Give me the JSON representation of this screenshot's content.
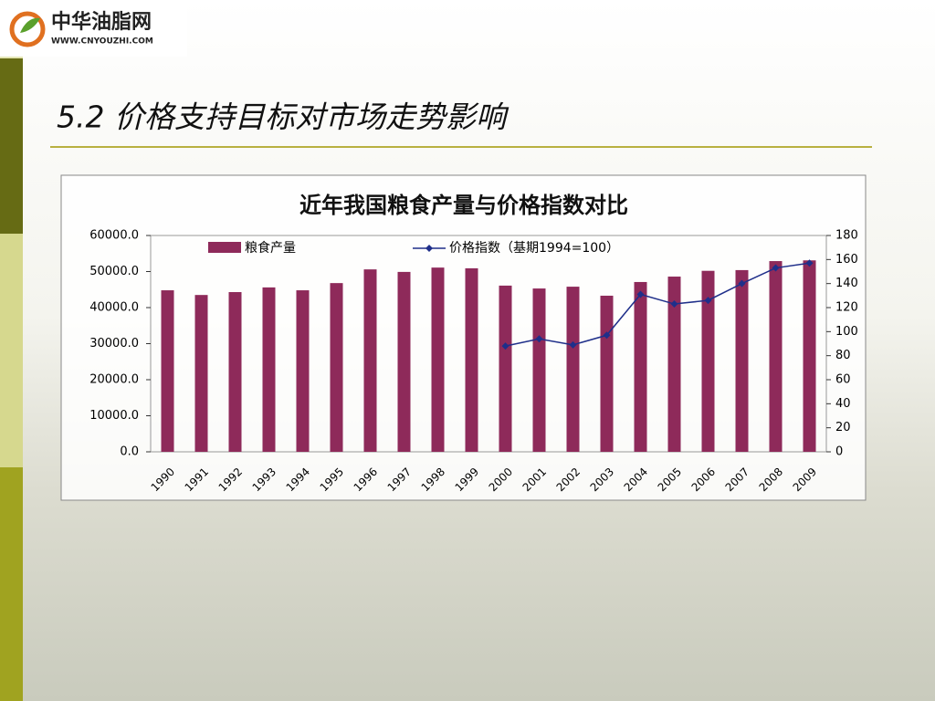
{
  "logo": {
    "name": "中华油脂网",
    "url": "WWW.CNYOUZHI.COM"
  },
  "slide_title": "5.2 价格支持目标对市场走势影响",
  "chart_data": {
    "type": "bar",
    "title": "近年我国粮食产量与价格指数对比",
    "categories": [
      "1990",
      "1991",
      "1992",
      "1993",
      "1994",
      "1995",
      "1996",
      "1997",
      "1998",
      "1999",
      "2000",
      "2001",
      "2002",
      "2003",
      "2004",
      "2005",
      "2006",
      "2007",
      "2008",
      "2009"
    ],
    "series": [
      {
        "name": "粮食产量",
        "type": "bar",
        "color": "#8e2a5a",
        "values": [
          44800,
          43500,
          44300,
          45600,
          44800,
          46800,
          50600,
          49900,
          51100,
          50900,
          46100,
          45300,
          45800,
          43300,
          47100,
          48600,
          50200,
          50400,
          52900,
          53100
        ]
      },
      {
        "name": "价格指数（基期1994=100）",
        "type": "line",
        "axis": "y2",
        "color": "#1f2f8a",
        "values": [
          null,
          null,
          null,
          null,
          null,
          null,
          null,
          null,
          null,
          null,
          88,
          94,
          89,
          97,
          131,
          123,
          126,
          140,
          153,
          157
        ]
      }
    ],
    "ylim": [
      0,
      60000
    ],
    "yticks": [
      {
        "value": 0,
        "label": "0.0"
      },
      {
        "value": 10000,
        "label": "10000.0"
      },
      {
        "value": 20000,
        "label": "20000.0"
      },
      {
        "value": 30000,
        "label": "30000.0"
      },
      {
        "value": 40000,
        "label": "40000.0"
      },
      {
        "value": 50000,
        "label": "50000.0"
      },
      {
        "value": 60000,
        "label": "60000.0"
      }
    ],
    "y2lim": [
      0,
      180
    ],
    "y2ticks": [
      0,
      20,
      40,
      60,
      80,
      100,
      120,
      140,
      160,
      180
    ],
    "legend": "top"
  }
}
